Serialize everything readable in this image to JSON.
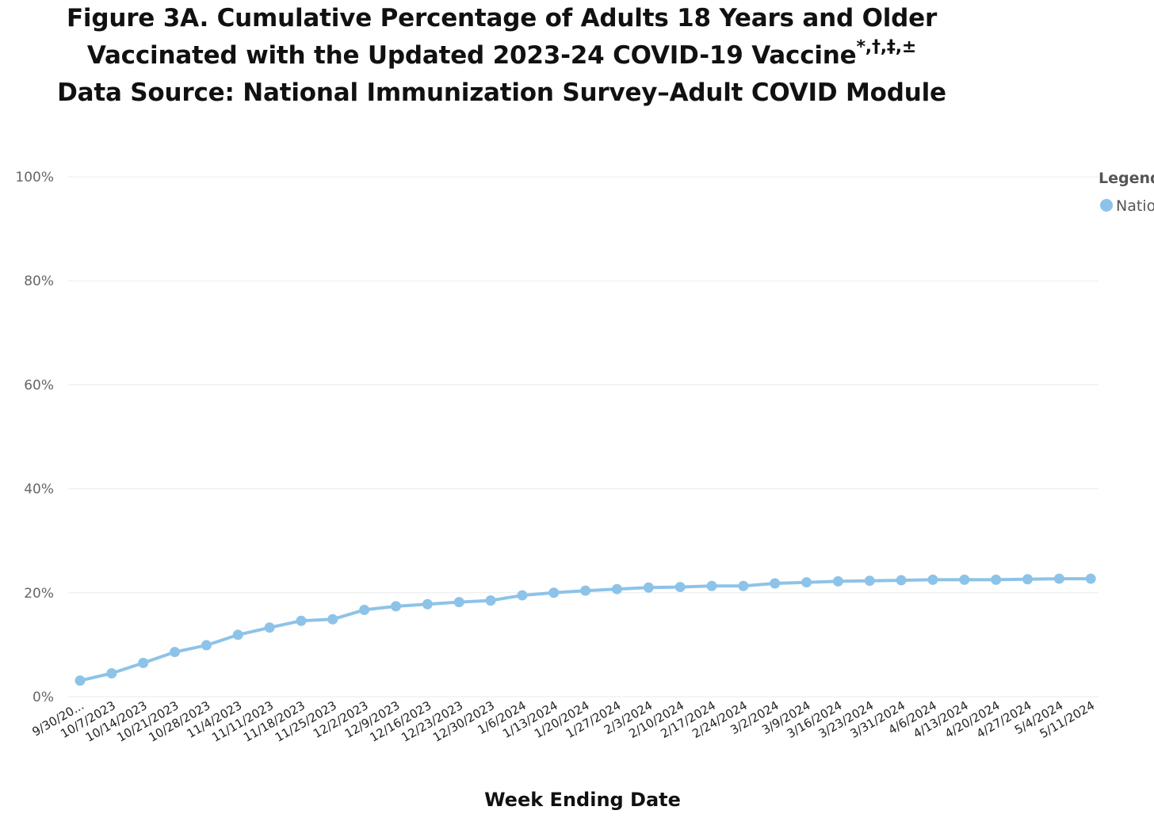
{
  "chart_data": {
    "type": "line",
    "title": [
      "Figure 3A. Cumulative Percentage of Adults 18 Years and Older",
      "Vaccinated with the Updated 2023-24 COVID-19 Vaccine",
      "Data Source: National Immunization Survey–Adult COVID Module"
    ],
    "title_footnote_marks": "*,†,‡,±",
    "xlabel": "Week Ending Date",
    "ylabel": "",
    "ylim": [
      0,
      100
    ],
    "yticks": [
      "0%",
      "20%",
      "40%",
      "60%",
      "80%",
      "100%"
    ],
    "grid": true,
    "legend": {
      "title": "Legend",
      "position": "top-right",
      "entries": [
        "Natio"
      ]
    },
    "categories": [
      "9/30/20...",
      "10/7/2023",
      "10/14/2023",
      "10/21/2023",
      "10/28/2023",
      "11/4/2023",
      "11/11/2023",
      "11/18/2023",
      "11/25/2023",
      "12/2/2023",
      "12/9/2023",
      "12/16/2023",
      "12/23/2023",
      "12/30/2023",
      "1/6/2024",
      "1/13/2024",
      "1/20/2024",
      "1/27/2024",
      "2/3/2024",
      "2/10/2024",
      "2/17/2024",
      "2/24/2024",
      "3/2/2024",
      "3/9/2024",
      "3/16/2024",
      "3/23/2024",
      "3/31/2024",
      "4/6/2024",
      "4/13/2024",
      "4/20/2024",
      "4/27/2024",
      "5/4/2024",
      "5/11/2024"
    ],
    "series": [
      {
        "name": "Natio",
        "color": "#8dc3e8",
        "values": [
          3.1,
          4.5,
          6.5,
          8.6,
          9.9,
          11.9,
          13.3,
          14.6,
          14.9,
          16.7,
          17.4,
          17.8,
          18.2,
          18.5,
          19.5,
          20.0,
          20.4,
          20.7,
          21.0,
          21.1,
          21.3,
          21.3,
          21.8,
          22.0,
          22.2,
          22.3,
          22.4,
          22.5,
          22.5,
          22.5,
          22.6,
          22.7,
          22.7
        ]
      }
    ]
  }
}
